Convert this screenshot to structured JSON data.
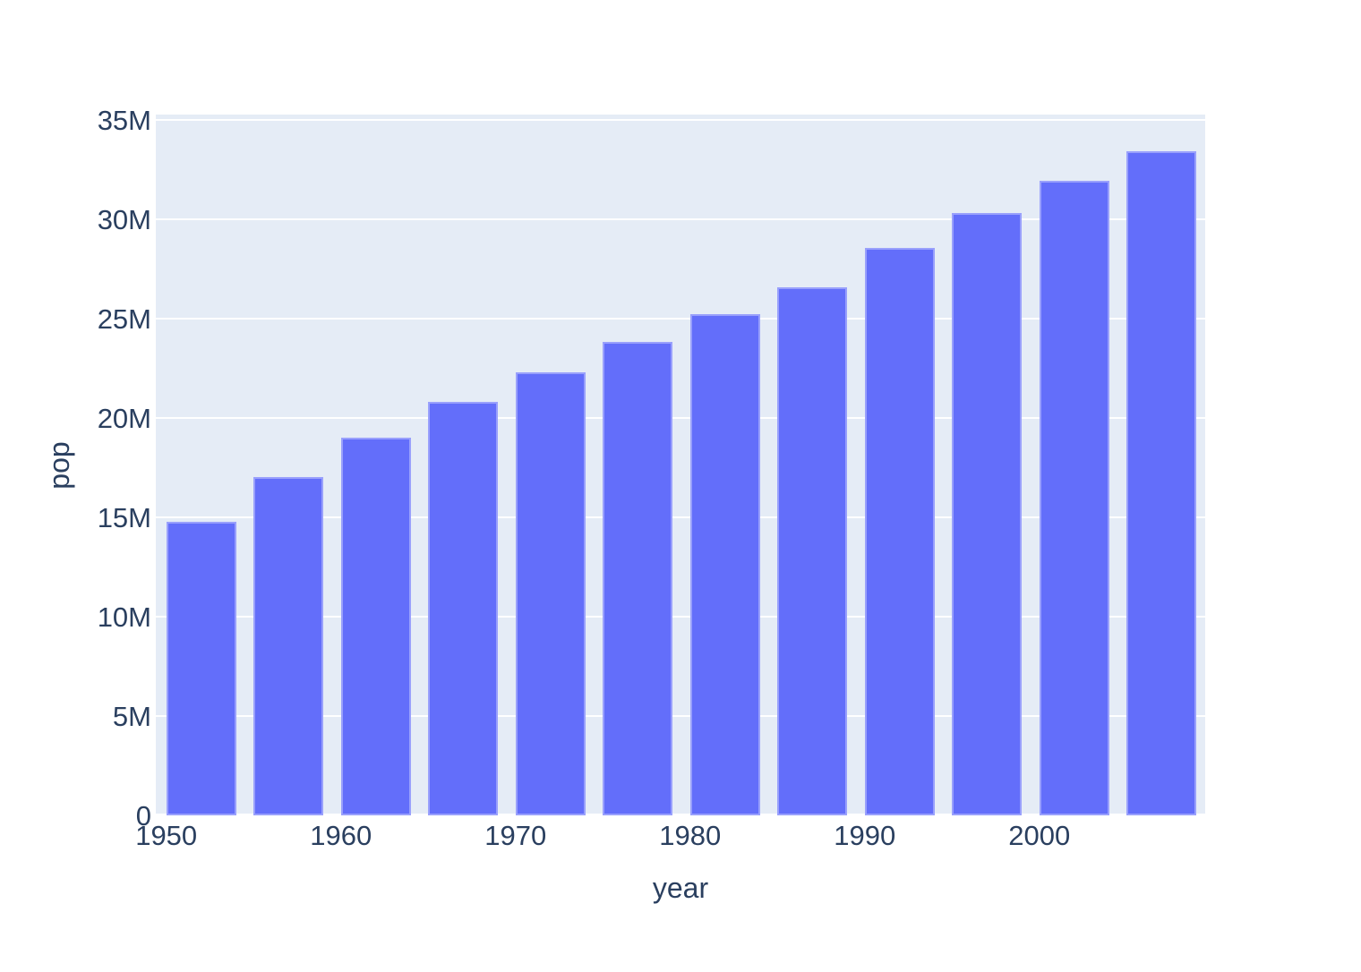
{
  "chart_data": {
    "type": "bar",
    "title": "",
    "xlabel": "year",
    "ylabel": "pop",
    "x": [
      1952,
      1957,
      1962,
      1967,
      1972,
      1977,
      1982,
      1987,
      1992,
      1997,
      2002,
      2007
    ],
    "values": [
      14.786,
      17.01,
      18.986,
      20.82,
      22.285,
      23.796,
      25.202,
      26.55,
      28.524,
      30.306,
      31.902,
      33.39
    ],
    "values_unit": "millions",
    "bar_width_x": 4,
    "xlim": [
      1949.4,
      2009.5
    ],
    "ylim": [
      0,
      35.25
    ],
    "grid": true,
    "legend": "none",
    "x_tick_values": [
      1950,
      1960,
      1970,
      1980,
      1990,
      2000
    ],
    "x_tick_labels": [
      "1950",
      "1960",
      "1970",
      "1980",
      "1990",
      "2000"
    ],
    "y_tick_values": [
      0,
      5,
      10,
      15,
      20,
      25,
      30,
      35
    ],
    "y_tick_labels": [
      "0",
      "5M",
      "10M",
      "15M",
      "20M",
      "25M",
      "30M",
      "35M"
    ],
    "colors": {
      "bar": "#636EFA",
      "bar_edge": "rgba(255,255,255,0.35)",
      "plot_background": "#E5ECF6",
      "gridline": "#FFFFFF",
      "zero_line": "#FFFFFF",
      "text": "#2A3F5F",
      "page_background": "#FFFFFF"
    }
  }
}
